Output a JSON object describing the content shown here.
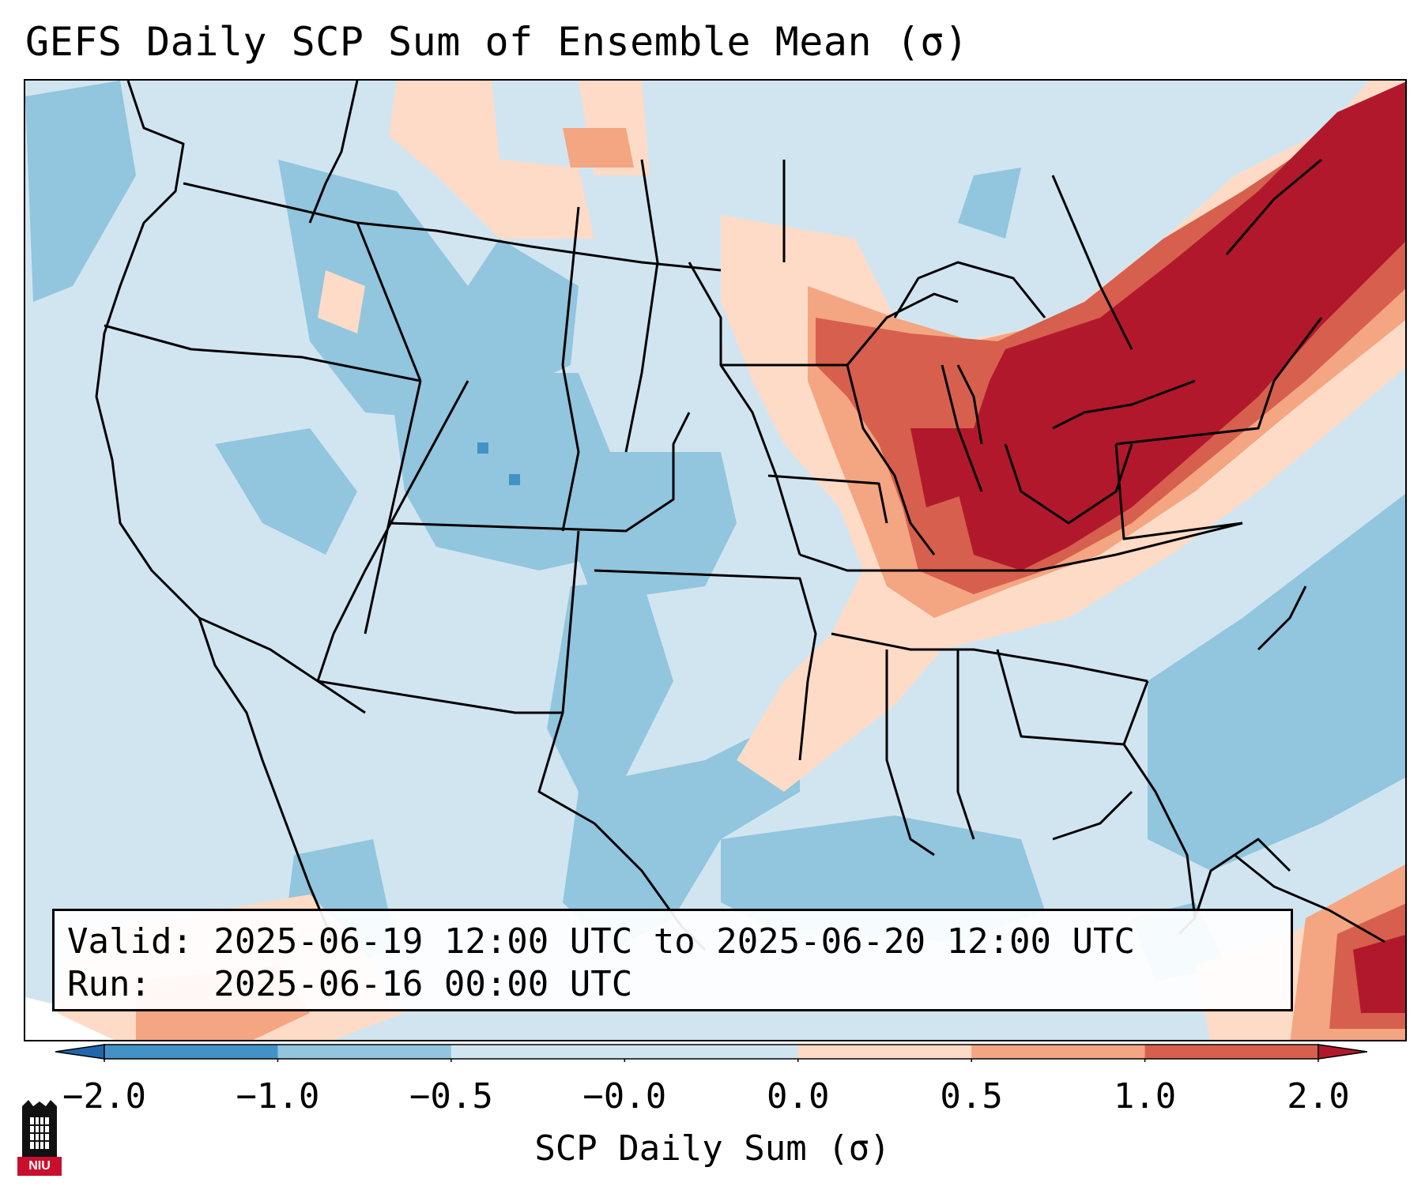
{
  "title": "GEFS Daily SCP Sum of Ensemble Mean (σ)",
  "info": {
    "valid_line": "Valid: 2025-06-19 12:00 UTC to 2025-06-20 12:00 UTC",
    "run_line": "Run:   2025-06-16 00:00 UTC"
  },
  "colorbar": {
    "label": "SCP Daily Sum (σ)",
    "ticks": [
      "−2.0",
      "−1.0",
      "−0.5",
      "−0.0",
      "0.0",
      "0.5",
      "1.0",
      "2.0"
    ],
    "bin_colors": [
      "#4292c6",
      "#92c5de",
      "#d1e5f0",
      "#d1e5f0",
      "#fddbc7",
      "#f4a582",
      "#d6604d",
      "#b2182b"
    ],
    "extend_low_color": "#2166ac",
    "extend_high_color": "#b2182b"
  },
  "logo": {
    "text": "NIU"
  },
  "colors": {
    "neutral_blue": "#d1e5f0",
    "light_blue": "#92c5de",
    "mid_blue": "#4292c6",
    "peach": "#fddbc7",
    "salmon": "#f4a582",
    "coral": "#d6604d",
    "dark_red": "#b2182b"
  }
}
